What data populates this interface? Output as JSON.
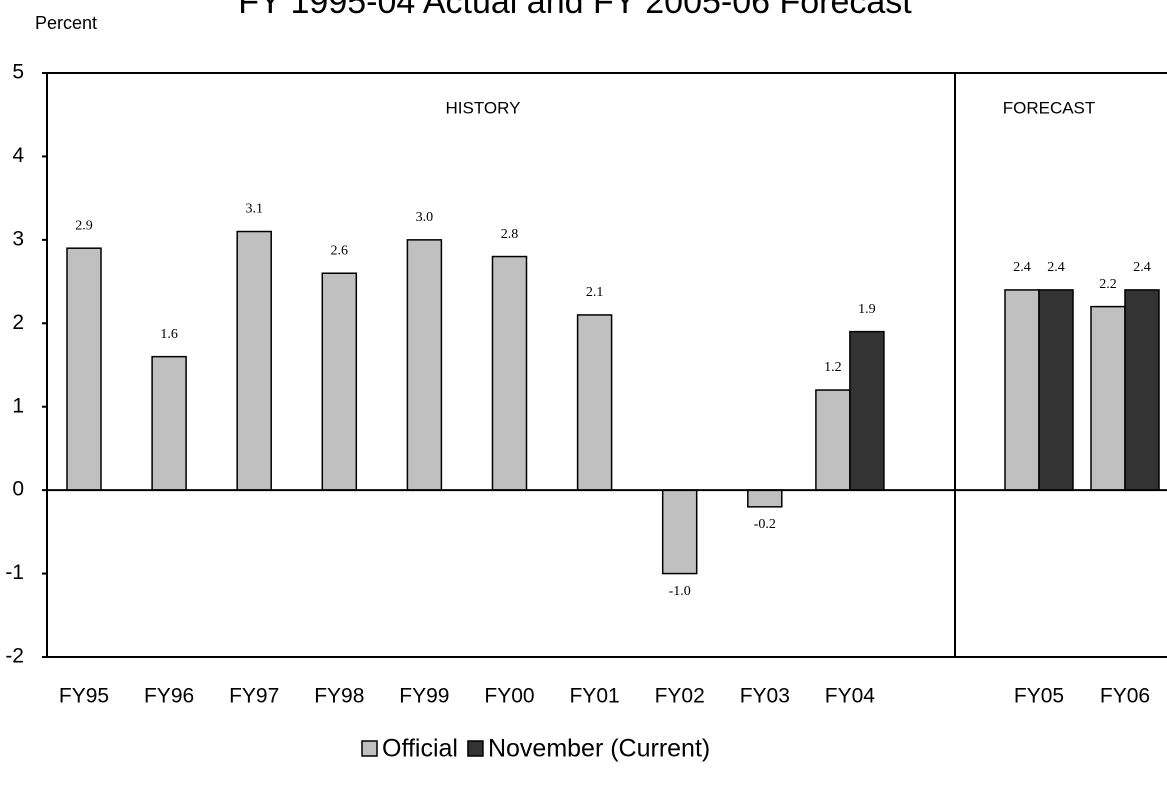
{
  "chart_data": {
    "type": "bar",
    "title": "FY 1995-04 Actual and FY 2005-06 Forecast",
    "y_label": "Percent",
    "sections": [
      "HISTORY",
      "FORECAST"
    ],
    "categories": [
      "FY95",
      "FY96",
      "FY97",
      "FY98",
      "FY99",
      "FY00",
      "FY01",
      "FY02",
      "FY03",
      "FY04",
      "FY05",
      "FY06"
    ],
    "series": [
      {
        "name": "Official",
        "color": "#c0c0c0",
        "values": [
          2.9,
          1.6,
          3.1,
          2.6,
          3.0,
          2.8,
          2.1,
          -1.0,
          -0.2,
          1.2,
          2.4,
          2.2
        ],
        "value_labels": [
          "2.9",
          "1.6",
          "3.1",
          "2.6",
          "3.0",
          "2.8",
          "2.1",
          "-1.0",
          "-0.2",
          "1.2",
          "2.4",
          "2.2"
        ]
      },
      {
        "name": "November (Current)",
        "color": "#333333",
        "values": [
          null,
          null,
          null,
          null,
          null,
          null,
          null,
          null,
          null,
          1.9,
          2.4,
          2.4
        ],
        "value_labels": [
          null,
          null,
          null,
          null,
          null,
          null,
          null,
          null,
          null,
          "1.9",
          "2.4",
          "2.4"
        ]
      }
    ],
    "ylim": [
      -2,
      5
    ],
    "yticks": [
      -2,
      -1,
      0,
      1,
      2,
      3,
      4,
      5
    ],
    "grid": false
  }
}
